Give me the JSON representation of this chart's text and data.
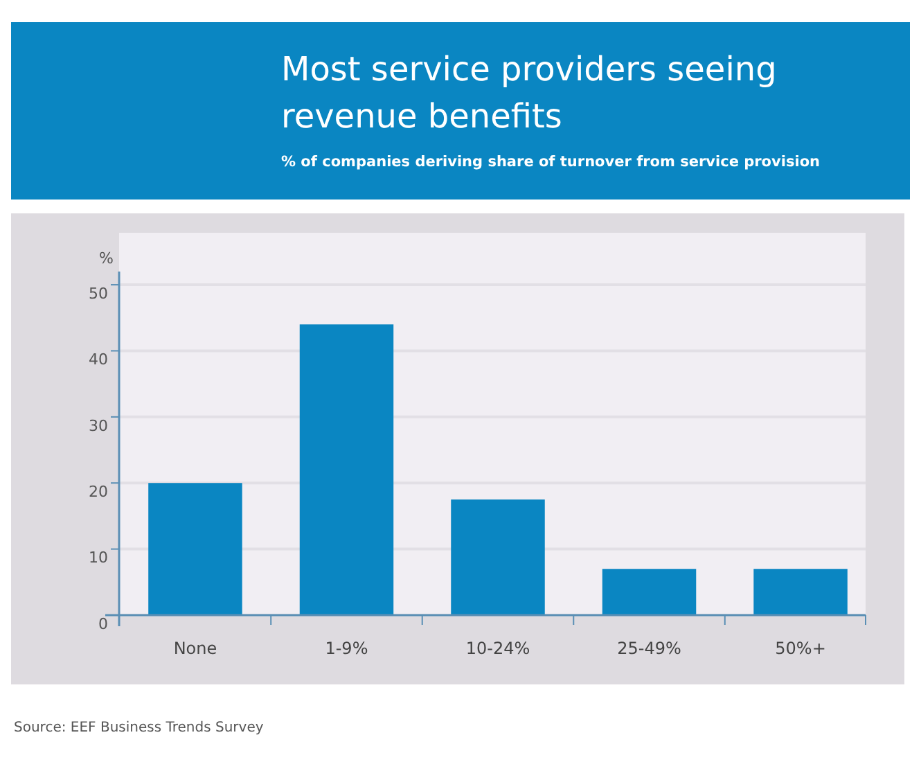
{
  "chart_data": {
    "type": "bar",
    "title": "Most service providers seeing revenue benefits",
    "subtitle": "% of companies deriving share of turnover from service provision",
    "ylabel": "%",
    "categories": [
      "None",
      "1-9%",
      "10-24%",
      "25-49%",
      "50%+"
    ],
    "values": [
      20,
      44,
      17.5,
      7,
      7
    ],
    "color": "#0a86c2",
    "ylim": [
      0,
      52
    ],
    "yticks": [
      0,
      10,
      20,
      30,
      40,
      50
    ],
    "grid": "y",
    "annotations": [
      "Source: EEF Business Trends Survey"
    ]
  }
}
